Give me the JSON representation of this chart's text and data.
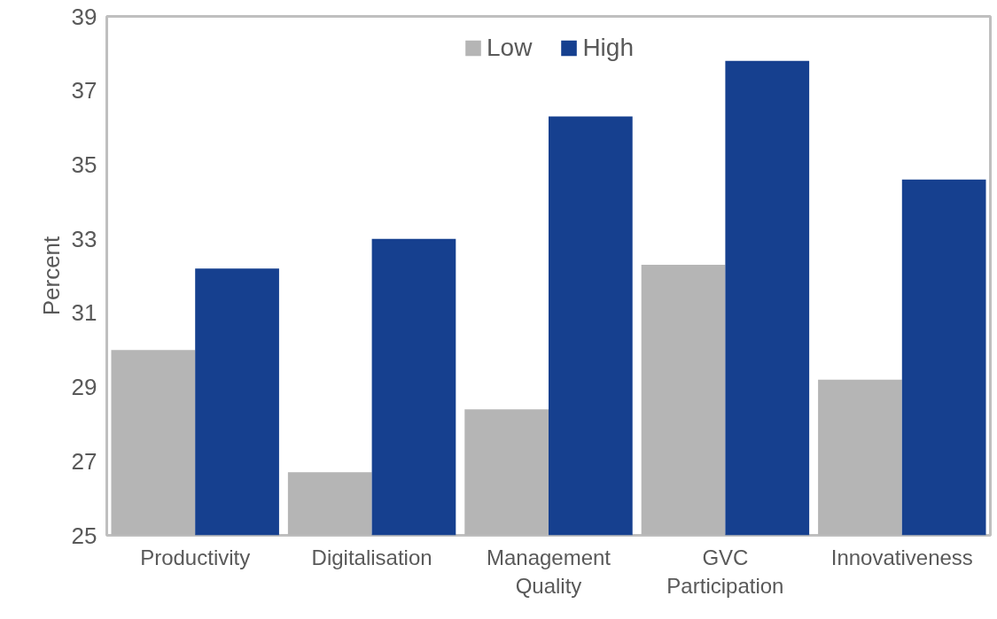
{
  "chart_data": {
    "type": "bar",
    "ylabel": "Percent",
    "categories": [
      "Productivity",
      "Digitalisation",
      "Management Quality",
      "GVC Participation",
      "Innovativeness"
    ],
    "series": [
      {
        "name": "Low",
        "color": "#b5b5b5",
        "values": [
          30.0,
          26.7,
          28.4,
          32.3,
          29.2
        ]
      },
      {
        "name": "High",
        "color": "#16408f",
        "values": [
          32.2,
          33.0,
          36.3,
          37.8,
          34.6
        ]
      }
    ],
    "ylim": [
      25,
      39
    ],
    "yticks": [
      25,
      27,
      29,
      31,
      33,
      35,
      37,
      39
    ],
    "grid": false,
    "legend": "top"
  }
}
